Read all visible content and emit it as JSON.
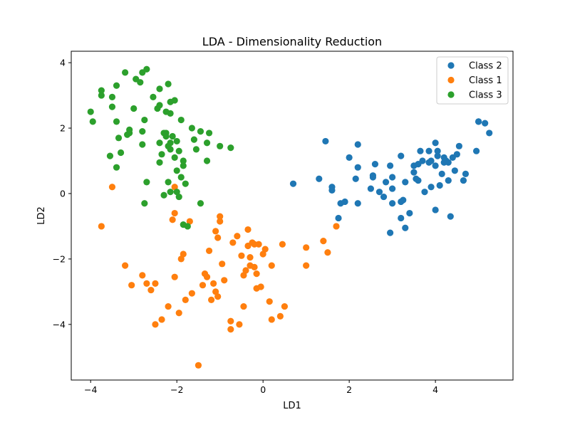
{
  "chart_data": {
    "type": "scatter",
    "title": "LDA - Dimensionality Reduction",
    "xlabel": "LD1",
    "ylabel": "LD2",
    "xlim": [
      -4.45,
      5.8
    ],
    "ylim": [
      -5.7,
      4.35
    ],
    "xticks": [
      -4,
      -2,
      0,
      2,
      4
    ],
    "yticks": [
      -4,
      -2,
      0,
      2,
      4
    ],
    "grid": false,
    "legend_position": "top-right",
    "series": [
      {
        "name": "Class 2",
        "color": "#1f77b4",
        "points": [
          [
            0.7,
            0.3
          ],
          [
            1.3,
            0.45
          ],
          [
            1.45,
            1.6
          ],
          [
            1.6,
            0.2
          ],
          [
            1.6,
            0.1
          ],
          [
            1.8,
            -0.3
          ],
          [
            1.75,
            -0.75
          ],
          [
            1.9,
            -0.25
          ],
          [
            2.0,
            1.1
          ],
          [
            2.15,
            0.45
          ],
          [
            2.2,
            1.5
          ],
          [
            2.2,
            0.8
          ],
          [
            2.2,
            -0.3
          ],
          [
            2.55,
            0.55
          ],
          [
            2.55,
            0.5
          ],
          [
            2.6,
            0.9
          ],
          [
            2.5,
            0.15
          ],
          [
            2.7,
            0.05
          ],
          [
            2.8,
            -0.1
          ],
          [
            2.85,
            0.35
          ],
          [
            2.95,
            0.85
          ],
          [
            2.95,
            -1.2
          ],
          [
            3.0,
            0.5
          ],
          [
            3.0,
            -0.3
          ],
          [
            3.0,
            0.15
          ],
          [
            3.2,
            1.15
          ],
          [
            3.2,
            -0.25
          ],
          [
            3.2,
            -0.75
          ],
          [
            3.25,
            -0.2
          ],
          [
            3.3,
            -1.05
          ],
          [
            3.3,
            0.35
          ],
          [
            3.4,
            -0.6
          ],
          [
            3.5,
            0.85
          ],
          [
            3.5,
            0.65
          ],
          [
            3.55,
            0.45
          ],
          [
            3.6,
            0.9
          ],
          [
            3.6,
            0.4
          ],
          [
            3.65,
            1.3
          ],
          [
            3.7,
            1.0
          ],
          [
            3.75,
            0.05
          ],
          [
            3.85,
            1.3
          ],
          [
            3.85,
            0.95
          ],
          [
            3.9,
            1.0
          ],
          [
            3.9,
            0.2
          ],
          [
            4.0,
            1.55
          ],
          [
            4.0,
            0.85
          ],
          [
            4.0,
            -0.5
          ],
          [
            4.05,
            1.15
          ],
          [
            4.05,
            1.3
          ],
          [
            4.1,
            0.25
          ],
          [
            4.15,
            0.6
          ],
          [
            4.2,
            1.1
          ],
          [
            4.2,
            0.95
          ],
          [
            4.25,
            1.0
          ],
          [
            4.3,
            0.4
          ],
          [
            4.3,
            0.95
          ],
          [
            4.35,
            -0.7
          ],
          [
            4.4,
            1.1
          ],
          [
            4.45,
            0.7
          ],
          [
            4.5,
            1.2
          ],
          [
            4.55,
            1.45
          ],
          [
            4.65,
            0.4
          ],
          [
            4.7,
            0.6
          ],
          [
            4.95,
            1.3
          ],
          [
            5.0,
            2.2
          ],
          [
            5.0,
            2.2
          ],
          [
            5.15,
            2.15
          ],
          [
            5.25,
            1.85
          ]
        ]
      },
      {
        "name": "Class 1",
        "color": "#ff7f0e",
        "points": [
          [
            -3.75,
            -1.0
          ],
          [
            -3.5,
            0.2
          ],
          [
            -3.2,
            -2.2
          ],
          [
            -3.05,
            -2.8
          ],
          [
            -2.8,
            -2.5
          ],
          [
            -2.7,
            -2.75
          ],
          [
            -2.6,
            -2.95
          ],
          [
            -2.5,
            -2.75
          ],
          [
            -2.5,
            -4.0
          ],
          [
            -2.35,
            -3.85
          ],
          [
            -2.2,
            -3.45
          ],
          [
            -2.1,
            -0.8
          ],
          [
            -2.05,
            -0.6
          ],
          [
            -2.05,
            -2.55
          ],
          [
            -2.05,
            0.2
          ],
          [
            -1.95,
            -3.65
          ],
          [
            -1.9,
            -2.0
          ],
          [
            -1.85,
            -1.85
          ],
          [
            -1.8,
            -3.25
          ],
          [
            -1.7,
            -0.85
          ],
          [
            -1.65,
            -3.05
          ],
          [
            -1.5,
            -5.25
          ],
          [
            -1.4,
            -2.8
          ],
          [
            -1.35,
            -2.45
          ],
          [
            -1.3,
            -2.55
          ],
          [
            -1.25,
            -1.75
          ],
          [
            -1.2,
            -3.25
          ],
          [
            -1.15,
            -2.75
          ],
          [
            -1.1,
            -3.0
          ],
          [
            -1.1,
            -1.15
          ],
          [
            -1.05,
            -3.15
          ],
          [
            -1.05,
            -1.35
          ],
          [
            -1.0,
            -0.7
          ],
          [
            -1.0,
            -0.85
          ],
          [
            -0.95,
            -2.15
          ],
          [
            -0.9,
            -2.65
          ],
          [
            -0.75,
            -3.9
          ],
          [
            -0.75,
            -4.15
          ],
          [
            -0.7,
            -1.5
          ],
          [
            -0.6,
            -1.3
          ],
          [
            -0.55,
            -4.0
          ],
          [
            -0.5,
            -1.9
          ],
          [
            -0.45,
            -2.5
          ],
          [
            -0.45,
            -3.45
          ],
          [
            -0.4,
            -2.35
          ],
          [
            -0.35,
            -1.1
          ],
          [
            -0.35,
            -1.6
          ],
          [
            -0.3,
            -2.2
          ],
          [
            -0.3,
            -1.95
          ],
          [
            -0.25,
            -1.5
          ],
          [
            -0.2,
            -2.25
          ],
          [
            -0.2,
            -1.55
          ],
          [
            -0.15,
            -2.45
          ],
          [
            -0.15,
            -2.9
          ],
          [
            -0.1,
            -1.55
          ],
          [
            -0.05,
            -2.85
          ],
          [
            0.0,
            -1.85
          ],
          [
            0.05,
            -1.7
          ],
          [
            0.15,
            -3.3
          ],
          [
            0.2,
            -2.2
          ],
          [
            0.2,
            -3.85
          ],
          [
            0.4,
            -3.75
          ],
          [
            0.45,
            -1.55
          ],
          [
            0.5,
            -3.45
          ],
          [
            1.0,
            -1.65
          ],
          [
            1.0,
            -2.2
          ],
          [
            1.4,
            -1.45
          ],
          [
            1.5,
            -1.8
          ],
          [
            1.7,
            -1.0
          ]
        ]
      },
      {
        "name": "Class 3",
        "color": "#2ca02c",
        "points": [
          [
            -4.0,
            2.5
          ],
          [
            -3.95,
            2.2
          ],
          [
            -3.75,
            3.15
          ],
          [
            -3.75,
            3.0
          ],
          [
            -3.55,
            1.15
          ],
          [
            -3.5,
            2.65
          ],
          [
            -3.5,
            2.95
          ],
          [
            -3.4,
            3.3
          ],
          [
            -3.4,
            2.2
          ],
          [
            -3.4,
            0.8
          ],
          [
            -3.35,
            1.7
          ],
          [
            -3.3,
            1.25
          ],
          [
            -3.2,
            3.7
          ],
          [
            -3.15,
            1.8
          ],
          [
            -3.1,
            1.85
          ],
          [
            -3.1,
            1.95
          ],
          [
            -3.0,
            2.6
          ],
          [
            -2.95,
            3.5
          ],
          [
            -2.85,
            3.4
          ],
          [
            -2.8,
            1.9
          ],
          [
            -2.8,
            3.7
          ],
          [
            -2.8,
            1.5
          ],
          [
            -2.75,
            2.25
          ],
          [
            -2.75,
            -0.3
          ],
          [
            -2.7,
            0.35
          ],
          [
            -2.7,
            3.8
          ],
          [
            -2.55,
            2.95
          ],
          [
            -2.45,
            2.6
          ],
          [
            -2.4,
            3.2
          ],
          [
            -2.4,
            2.7
          ],
          [
            -2.4,
            1.55
          ],
          [
            -2.4,
            0.95
          ],
          [
            -2.35,
            1.2
          ],
          [
            -2.3,
            -0.05
          ],
          [
            -2.3,
            1.85
          ],
          [
            -2.25,
            1.75
          ],
          [
            -2.25,
            1.85
          ],
          [
            -2.25,
            2.5
          ],
          [
            -2.2,
            1.45
          ],
          [
            -2.2,
            0.35
          ],
          [
            -2.2,
            3.35
          ],
          [
            -2.15,
            1.55
          ],
          [
            -2.15,
            2.8
          ],
          [
            -2.15,
            2.45
          ],
          [
            -2.15,
            1.35
          ],
          [
            -2.15,
            0.05
          ],
          [
            -2.1,
            1.75
          ],
          [
            -2.05,
            2.85
          ],
          [
            -2.05,
            1.1
          ],
          [
            -2.0,
            1.6
          ],
          [
            -2.0,
            0.7
          ],
          [
            -2.0,
            0.05
          ],
          [
            -1.95,
            -0.1
          ],
          [
            -1.95,
            1.3
          ],
          [
            -1.9,
            0.5
          ],
          [
            -1.9,
            2.25
          ],
          [
            -1.85,
            1.0
          ],
          [
            -1.85,
            0.85
          ],
          [
            -1.85,
            -0.95
          ],
          [
            -1.8,
            0.3
          ],
          [
            -1.75,
            -1.0
          ],
          [
            -1.65,
            2.0
          ],
          [
            -1.6,
            1.65
          ],
          [
            -1.55,
            1.35
          ],
          [
            -1.45,
            1.9
          ],
          [
            -1.45,
            -0.3
          ],
          [
            -1.3,
            1.55
          ],
          [
            -1.3,
            1.0
          ],
          [
            -1.25,
            1.85
          ],
          [
            -1.0,
            1.45
          ],
          [
            -0.75,
            1.4
          ]
        ]
      }
    ]
  }
}
